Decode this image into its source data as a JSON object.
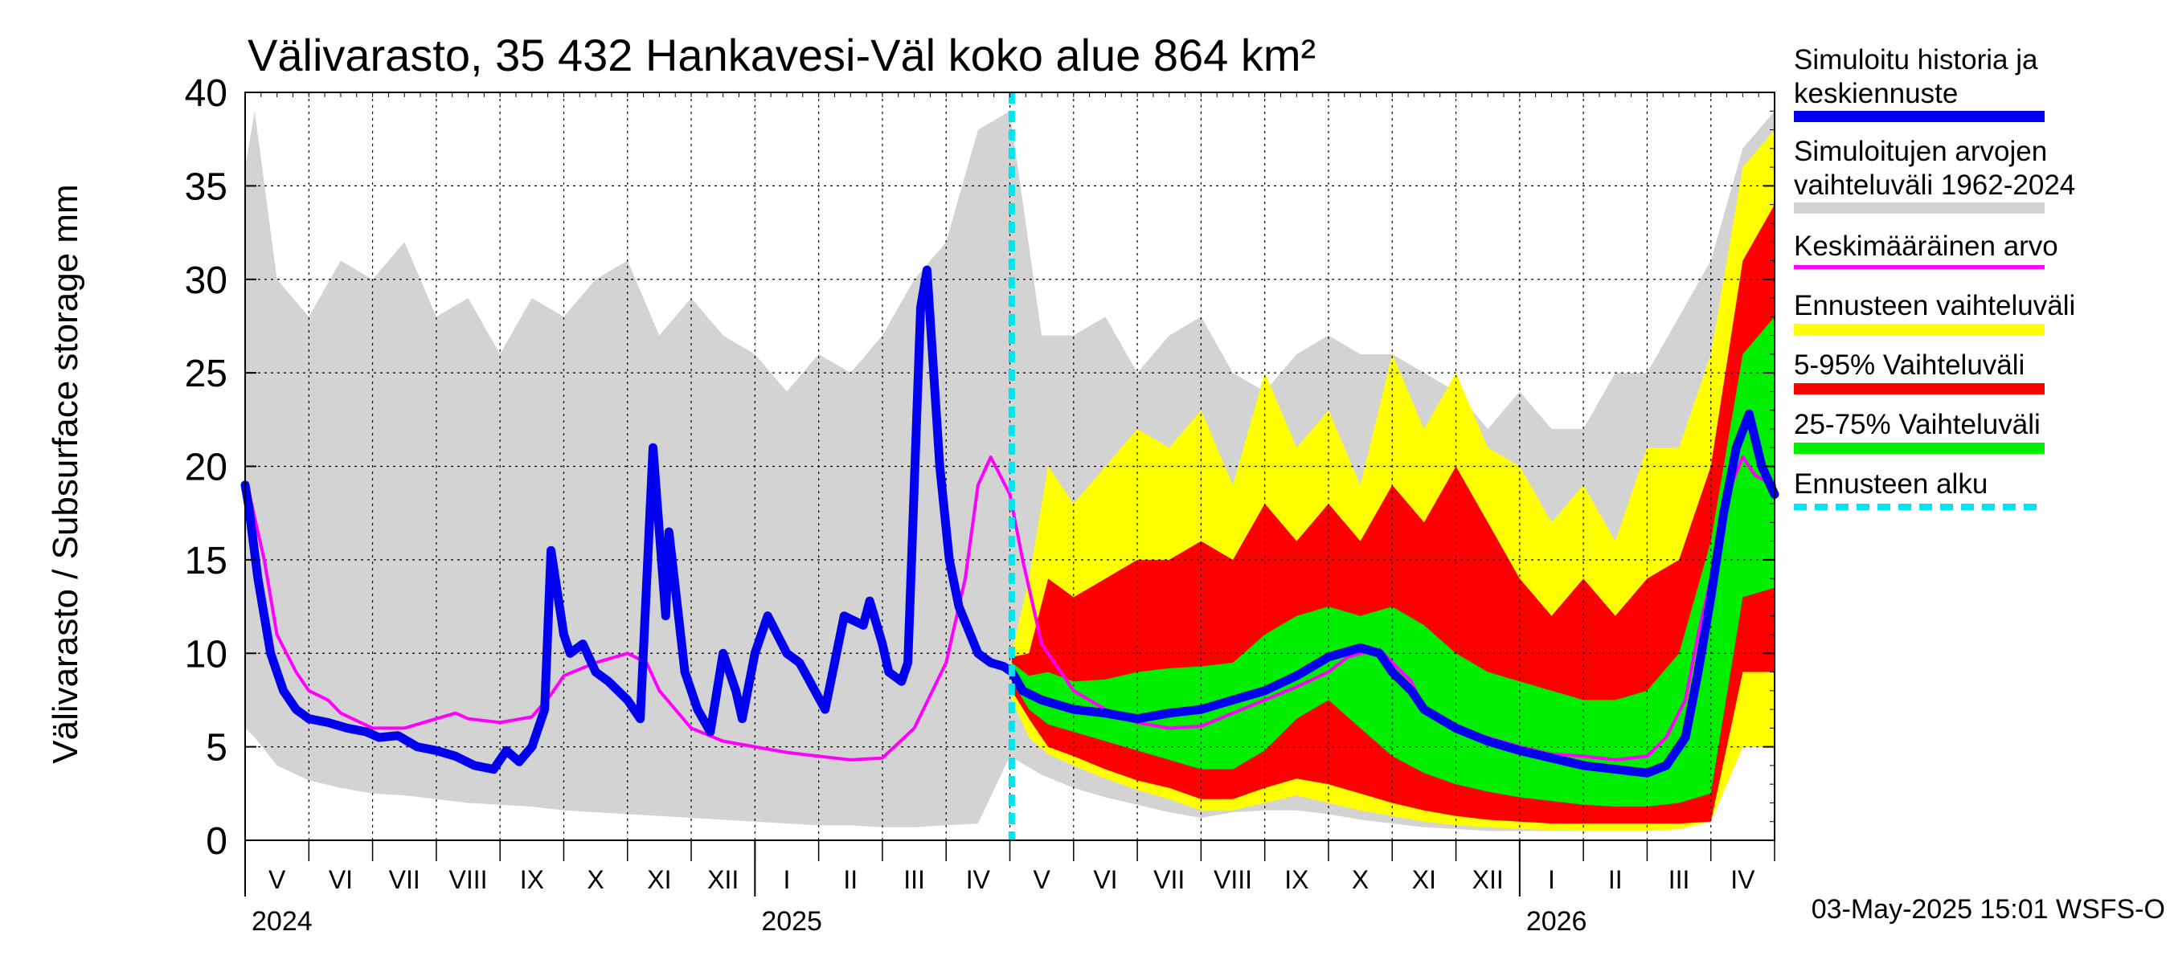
{
  "chart_data": {
    "type": "area",
    "title": "Välivarasto, 35 432 Hankavesi-Väl koko alue 864 km²",
    "ylabel": "Välivarasto / Subsurface storage  mm",
    "ylim": [
      0,
      40
    ],
    "yticks": [
      0,
      5,
      10,
      15,
      20,
      25,
      30,
      35,
      40
    ],
    "x_start": "2024-05",
    "x_end": "2026-05",
    "forecast_start_month": 12.03,
    "months": [
      {
        "label": "V",
        "m": 0
      },
      {
        "label": "VI",
        "m": 1
      },
      {
        "label": "VII",
        "m": 2
      },
      {
        "label": "VIII",
        "m": 3
      },
      {
        "label": "IX",
        "m": 4
      },
      {
        "label": "X",
        "m": 5
      },
      {
        "label": "XI",
        "m": 6
      },
      {
        "label": "XII",
        "m": 7
      },
      {
        "label": "I",
        "m": 8
      },
      {
        "label": "II",
        "m": 9
      },
      {
        "label": "III",
        "m": 10
      },
      {
        "label": "IV",
        "m": 11
      },
      {
        "label": "V",
        "m": 12
      },
      {
        "label": "VI",
        "m": 13
      },
      {
        "label": "VII",
        "m": 14
      },
      {
        "label": "VIII",
        "m": 15
      },
      {
        "label": "IX",
        "m": 16
      },
      {
        "label": "X",
        "m": 17
      },
      {
        "label": "XI",
        "m": 18
      },
      {
        "label": "XII",
        "m": 19
      },
      {
        "label": "I",
        "m": 20
      },
      {
        "label": "II",
        "m": 21
      },
      {
        "label": "III",
        "m": 22
      },
      {
        "label": "IV",
        "m": 23
      }
    ],
    "years": [
      {
        "label": "2024",
        "m": 0
      },
      {
        "label": "2025",
        "m": 8
      },
      {
        "label": "2026",
        "m": 20
      }
    ],
    "hist_range": {
      "name": "Simuloitujen arvojen vaihteluväli 1962-2024",
      "x": [
        0,
        0.15,
        0.5,
        1,
        1.5,
        2,
        2.5,
        3,
        3.5,
        4,
        4.5,
        5,
        5.5,
        6,
        6.5,
        7,
        7.5,
        8,
        8.5,
        9,
        9.5,
        10,
        10.5,
        11,
        11.5,
        12,
        12.5,
        13,
        13.5,
        14,
        14.5,
        15,
        15.5,
        16,
        16.5,
        17,
        17.5,
        18,
        18.5,
        19,
        19.5,
        20,
        20.5,
        21,
        21.5,
        22,
        22.5,
        23,
        23.5,
        24
      ],
      "high": [
        36,
        39,
        30,
        28,
        31,
        30,
        32,
        28,
        29,
        26,
        29,
        28,
        30,
        31,
        27,
        29,
        27,
        26,
        24,
        26,
        25,
        27,
        30,
        32,
        38,
        39,
        27,
        27,
        28,
        25,
        27,
        28,
        25,
        24,
        26,
        27,
        26,
        26,
        25,
        24,
        22,
        24,
        22,
        22,
        25,
        25,
        28,
        31,
        37,
        39
      ],
      "low": [
        6,
        5.5,
        4.0,
        3.2,
        2.8,
        2.5,
        2.4,
        2.2,
        2.0,
        1.9,
        1.8,
        1.6,
        1.5,
        1.4,
        1.3,
        1.2,
        1.1,
        1.0,
        0.9,
        0.8,
        0.8,
        0.7,
        0.7,
        0.8,
        0.9,
        4.5,
        3.5,
        2.8,
        2.3,
        1.9,
        1.5,
        1.2,
        1.5,
        1.6,
        1.6,
        1.4,
        1.1,
        0.9,
        0.7,
        0.6,
        0.5,
        0.5,
        0.5,
        0.5,
        0.5,
        0.5,
        0.6,
        1.0,
        8.0,
        6.0
      ]
    },
    "fc_yellow": {
      "name": "Ennusteen vaihteluväli",
      "x": [
        12.03,
        12.3,
        12.6,
        13,
        13.5,
        14,
        14.5,
        15,
        15.5,
        16,
        16.5,
        17,
        17.5,
        18,
        18.5,
        19,
        19.5,
        20,
        20.5,
        21,
        21.5,
        22,
        22.5,
        23,
        23.5,
        24
      ],
      "high": [
        10,
        14,
        20,
        18,
        20,
        22,
        21,
        23,
        19,
        25,
        21,
        23,
        19,
        26,
        22,
        25,
        21,
        20,
        17,
        19,
        16,
        21,
        21,
        26,
        36,
        38
      ],
      "low": [
        7.5,
        5.5,
        4.6,
        4.0,
        3.3,
        2.7,
        2.2,
        1.6,
        1.6,
        2.0,
        2.4,
        2.0,
        1.6,
        1.3,
        1.0,
        0.8,
        0.7,
        0.6,
        0.55,
        0.5,
        0.5,
        0.5,
        0.6,
        1.0,
        5.0,
        5.0
      ]
    },
    "fc_red": {
      "name": "5-95% Vaihteluväli",
      "x": [
        12.03,
        12.3,
        12.6,
        13,
        13.5,
        14,
        14.5,
        15,
        15.5,
        16,
        16.5,
        17,
        17.5,
        18,
        18.5,
        19,
        19.5,
        20,
        20.5,
        21,
        21.5,
        22,
        22.5,
        23,
        23.5,
        24
      ],
      "high": [
        9.8,
        10,
        14,
        13,
        14,
        15,
        15,
        16,
        15,
        18,
        16,
        18,
        16,
        19,
        17,
        20,
        17,
        14,
        12,
        14,
        12,
        14,
        15,
        20,
        31,
        34
      ],
      "low": [
        8,
        6.5,
        5.0,
        4.5,
        3.8,
        3.2,
        2.8,
        2.2,
        2.2,
        2.8,
        3.3,
        3.0,
        2.5,
        2.0,
        1.6,
        1.3,
        1.1,
        1.0,
        0.9,
        0.9,
        0.9,
        0.9,
        0.9,
        1.0,
        9.0,
        9.0
      ]
    },
    "fc_green": {
      "name": "25-75% Vaihteluväli",
      "x": [
        12.03,
        12.3,
        12.6,
        13,
        13.5,
        14,
        14.5,
        15,
        15.5,
        16,
        16.5,
        17,
        17.5,
        18,
        18.5,
        19,
        19.5,
        20,
        20.5,
        21,
        21.5,
        22,
        22.5,
        23,
        23.5,
        24
      ],
      "high": [
        9.5,
        8.8,
        9.0,
        8.5,
        8.6,
        9.0,
        9.2,
        9.3,
        9.5,
        11.0,
        12.0,
        12.5,
        12.0,
        12.5,
        11.5,
        10.0,
        9.0,
        8.5,
        8.0,
        7.5,
        7.5,
        8.0,
        10.0,
        16.0,
        26.0,
        28.0
      ],
      "low": [
        8.5,
        7.0,
        6.2,
        5.8,
        5.3,
        4.8,
        4.3,
        3.8,
        3.8,
        4.8,
        6.5,
        7.5,
        6.0,
        4.5,
        3.6,
        3.0,
        2.6,
        2.3,
        2.1,
        1.9,
        1.8,
        1.8,
        2.0,
        2.5,
        13.0,
        13.5
      ]
    },
    "mean": {
      "name": "Keskimääräinen arvo",
      "x": [
        0,
        0.1,
        0.3,
        0.5,
        0.8,
        1,
        1.3,
        1.5,
        2,
        2.5,
        3,
        3.3,
        3.5,
        4,
        4.5,
        4.8,
        5,
        5.5,
        6,
        6.3,
        6.5,
        7,
        7.5,
        8,
        8.5,
        9,
        9.5,
        10,
        10.5,
        11,
        11.3,
        11.5,
        11.7,
        12,
        12.2,
        12.5,
        13,
        13.5,
        14,
        14.5,
        15,
        15.5,
        16,
        16.5,
        17,
        17.3,
        17.5,
        17.8,
        18,
        18.3,
        18.5,
        19,
        19.5,
        20,
        20.5,
        21,
        21.5,
        22,
        22.3,
        22.6,
        22.8,
        23,
        23.2,
        23.5,
        23.7,
        24
      ],
      "y": [
        19,
        18,
        15,
        11,
        9,
        8,
        7.5,
        6.8,
        6.0,
        6.0,
        6.5,
        6.8,
        6.5,
        6.3,
        6.6,
        7.8,
        8.8,
        9.5,
        10.0,
        9.5,
        8.0,
        6.0,
        5.3,
        5.0,
        4.7,
        4.5,
        4.3,
        4.4,
        6.0,
        9.5,
        14.0,
        19.0,
        20.5,
        18.5,
        15.0,
        10.5,
        8.0,
        7.0,
        6.3,
        6.0,
        6.1,
        6.8,
        7.5,
        8.2,
        9.0,
        9.8,
        10.0,
        10.2,
        9.5,
        8.5,
        7.0,
        6.0,
        5.5,
        5.0,
        4.6,
        4.5,
        4.3,
        4.5,
        5.5,
        7.5,
        11.0,
        14.0,
        18.0,
        20.5,
        19.5,
        19.0
      ]
    },
    "history": {
      "name": "Simuloitu historia ja keskiennuste",
      "x": [
        0,
        0.05,
        0.2,
        0.4,
        0.6,
        0.8,
        1,
        1.3,
        1.6,
        1.9,
        2.1,
        2.4,
        2.7,
        3,
        3.3,
        3.6,
        3.9,
        4.1,
        4.3,
        4.5,
        4.7,
        4.8,
        5,
        5.1,
        5.3,
        5.5,
        5.7,
        6,
        6.2,
        6.4,
        6.6,
        6.65,
        6.8,
        6.9,
        7.1,
        7.3,
        7.5,
        7.7,
        7.8,
        8.0,
        8.2,
        8.5,
        8.7,
        9.1,
        9.4,
        9.7,
        9.8,
        10.0,
        10.1,
        10.3,
        10.4,
        10.6,
        10.7,
        10.9,
        11.05,
        11.2,
        11.5,
        11.7,
        11.9,
        12.03,
        12.2,
        12.5,
        13,
        13.5,
        14,
        14.5,
        15,
        15.5,
        16,
        16.5,
        17,
        17.5,
        17.8,
        18,
        18.3,
        18.5,
        19,
        19.5,
        20,
        20.5,
        21,
        21.5,
        22,
        22.3,
        22.6,
        22.8,
        23,
        23.2,
        23.4,
        23.6,
        23.8,
        24
      ],
      "y": [
        19,
        18,
        14,
        10,
        8,
        7,
        6.5,
        6.3,
        6.0,
        5.8,
        5.5,
        5.6,
        5.0,
        4.8,
        4.5,
        4.0,
        3.8,
        4.8,
        4.2,
        5.0,
        7.0,
        15.5,
        11.0,
        10.0,
        10.5,
        9.0,
        8.5,
        7.5,
        6.5,
        21.0,
        12.0,
        16.5,
        12.0,
        9.0,
        7.0,
        5.8,
        10.0,
        8.0,
        6.5,
        10.0,
        12.0,
        10.0,
        9.5,
        7.0,
        12.0,
        11.5,
        12.8,
        10.5,
        9.0,
        8.5,
        9.5,
        28.5,
        30.5,
        20.0,
        15.0,
        12.5,
        10.0,
        9.5,
        9.3,
        9.0,
        8.0,
        7.5,
        7.0,
        6.8,
        6.5,
        6.8,
        7.0,
        7.5,
        8.0,
        8.8,
        9.8,
        10.3,
        10.0,
        9.0,
        8.0,
        7.0,
        6.0,
        5.3,
        4.8,
        4.4,
        4.0,
        3.8,
        3.6,
        4.0,
        5.5,
        9.0,
        13.0,
        17.5,
        21.0,
        22.8,
        20.0,
        18.5
      ]
    }
  },
  "legend": {
    "history": [
      "Simuloitu historia ja",
      "keskiennuste"
    ],
    "range": [
      "Simuloitujen arvojen",
      "vaihteluväli 1962-2024"
    ],
    "mean": "Keskimääräinen arvo",
    "fc_range": "Ennusteen vaihteluväli",
    "p5_95": "5-95% Vaihteluväli",
    "p25_75": "25-75% Vaihteluväli",
    "fc_start": "Ennusteen alku"
  },
  "colors": {
    "hist_range": "#d3d3d3",
    "yellow": "#ffff00",
    "red": "#ff0000",
    "green": "#00ee00",
    "mean": "#ff00ff",
    "history": "#0000ee",
    "fc_start": "#00e5ee",
    "grid": "#000000"
  },
  "footer": "03-May-2025 15:01 WSFS-O"
}
